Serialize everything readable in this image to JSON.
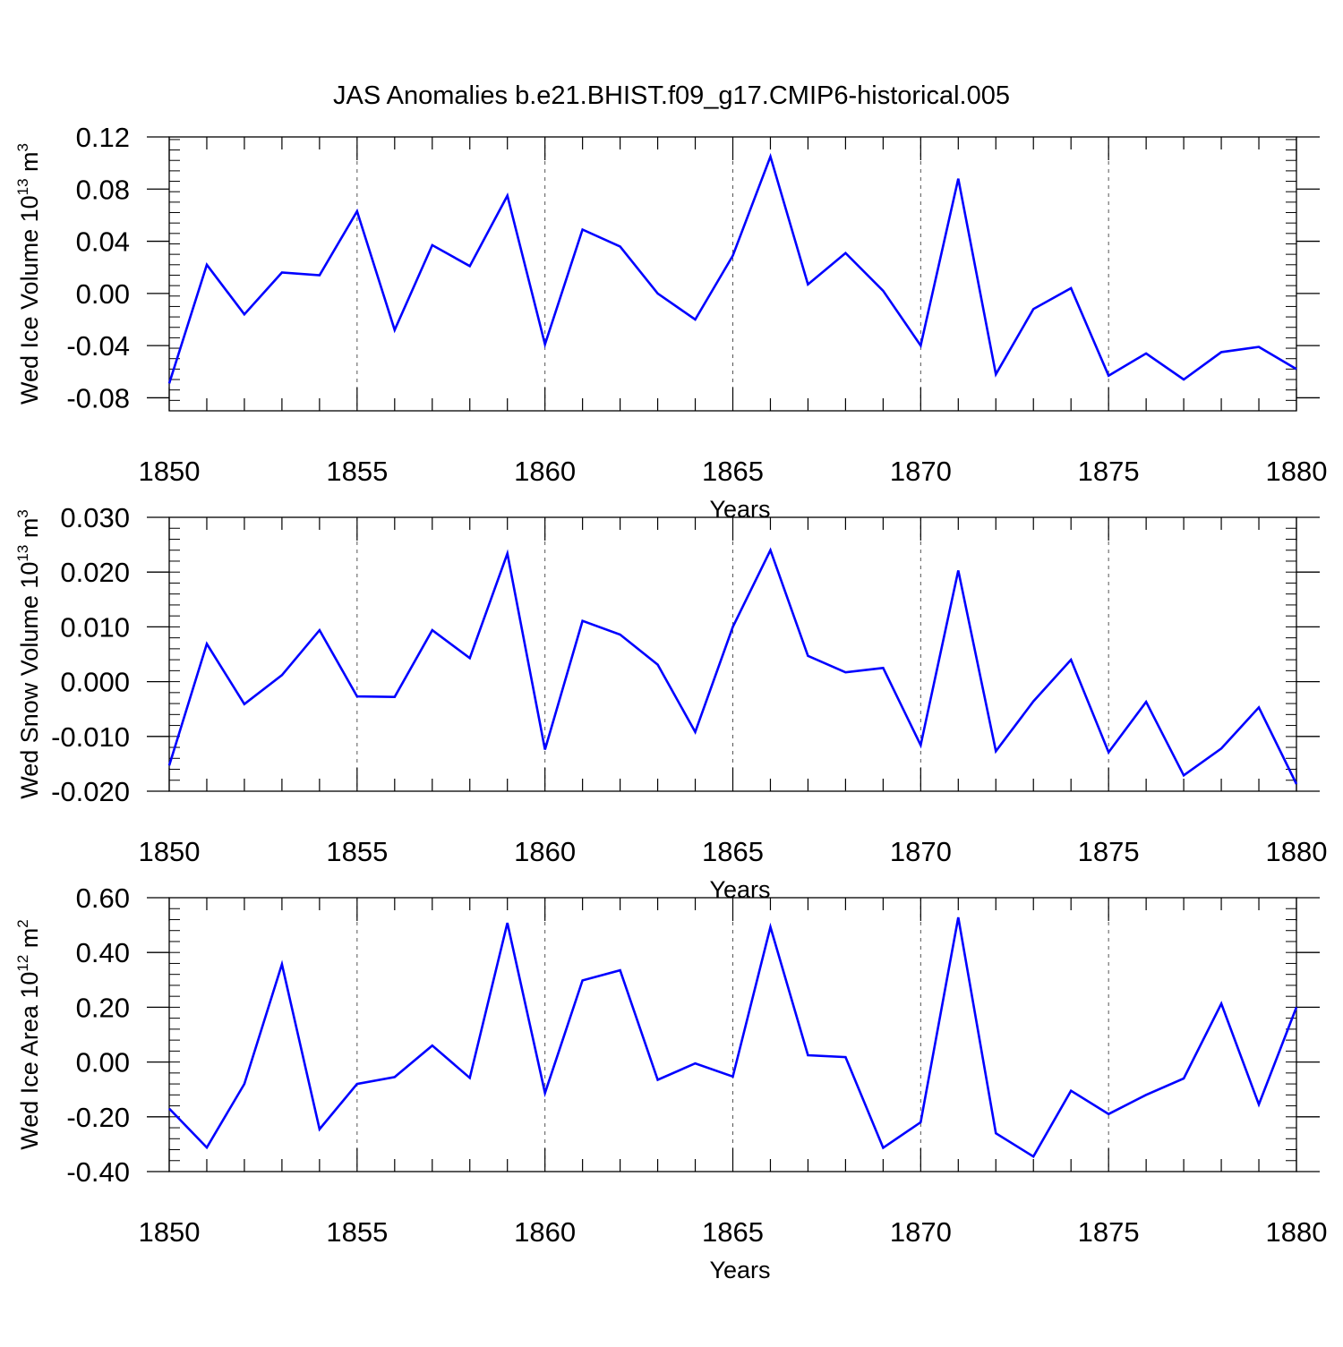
{
  "figure": {
    "title": "JAS Anomalies b.e21.BHIST.f09_g17.CMIP6-historical.005",
    "line_color": "#0000ff"
  },
  "chart_data": [
    {
      "type": "line",
      "title": "",
      "xlabel": "Years",
      "ylabel_main": "Wed Ice Volume 10",
      "ylabel_exp": "13",
      "ylabel_unit": "m",
      "ylabel_unit_exp": "3",
      "xlim": [
        1850,
        1880
      ],
      "ylim": [
        -0.09,
        0.12
      ],
      "grid": "vertical dashed at major x ticks",
      "x_ticks": [
        1850,
        1855,
        1860,
        1865,
        1870,
        1875,
        1880
      ],
      "x_tick_labels": [
        "1850",
        "1855",
        "1860",
        "1865",
        "1870",
        "1875",
        "1880"
      ],
      "y_ticks": [
        -0.08,
        -0.04,
        0.0,
        0.04,
        0.08,
        0.12
      ],
      "y_tick_labels": [
        "-0.08",
        "-0.04",
        "0.00",
        "0.04",
        "0.08",
        "0.12"
      ],
      "x": [
        1850,
        1851,
        1852,
        1853,
        1854,
        1855,
        1856,
        1857,
        1858,
        1859,
        1860,
        1861,
        1862,
        1863,
        1864,
        1865,
        1866,
        1867,
        1868,
        1869,
        1870,
        1871,
        1872,
        1873,
        1874,
        1875,
        1876,
        1877,
        1878,
        1879,
        1880
      ],
      "series": [
        {
          "values": [
            -0.069,
            0.022,
            -0.016,
            0.016,
            0.014,
            0.063,
            -0.028,
            0.037,
            0.021,
            0.075,
            -0.039,
            0.049,
            0.036,
            0.0,
            -0.02,
            0.029,
            0.105,
            0.007,
            0.031,
            0.002,
            -0.04,
            0.088,
            -0.062,
            -0.012,
            0.004,
            -0.063,
            -0.046,
            -0.066,
            -0.045,
            -0.041,
            -0.058
          ]
        }
      ]
    },
    {
      "type": "line",
      "title": "",
      "xlabel": "Years",
      "ylabel_main": "Wed Snow Volume 10",
      "ylabel_exp": "13",
      "ylabel_unit": "m",
      "ylabel_unit_exp": "3",
      "xlim": [
        1850,
        1880
      ],
      "ylim": [
        -0.02,
        0.03
      ],
      "grid": "vertical dashed at major x ticks",
      "x_ticks": [
        1850,
        1855,
        1860,
        1865,
        1870,
        1875,
        1880
      ],
      "x_tick_labels": [
        "1850",
        "1855",
        "1860",
        "1865",
        "1870",
        "1875",
        "1880"
      ],
      "y_ticks": [
        -0.02,
        -0.01,
        0.0,
        0.01,
        0.02,
        0.03
      ],
      "y_tick_labels": [
        "-0.020",
        "-0.010",
        "0.000",
        "0.010",
        "0.020",
        "0.030"
      ],
      "x": [
        1850,
        1851,
        1852,
        1853,
        1854,
        1855,
        1856,
        1857,
        1858,
        1859,
        1860,
        1861,
        1862,
        1863,
        1864,
        1865,
        1866,
        1867,
        1868,
        1869,
        1870,
        1871,
        1872,
        1873,
        1874,
        1875,
        1876,
        1877,
        1878,
        1879,
        1880
      ],
      "series": [
        {
          "values": [
            -0.0153,
            0.0069,
            -0.0041,
            0.0012,
            0.0094,
            -0.0027,
            -0.0028,
            0.0094,
            0.0043,
            0.0234,
            -0.0124,
            0.0111,
            0.0086,
            0.0031,
            -0.0092,
            0.01,
            0.024,
            0.0047,
            0.0017,
            0.0025,
            -0.0116,
            0.0203,
            -0.0127,
            -0.0036,
            0.004,
            -0.0129,
            -0.0037,
            -0.0171,
            -0.0122,
            -0.0047,
            -0.0187
          ]
        }
      ]
    },
    {
      "type": "line",
      "title": "",
      "xlabel": "Years",
      "ylabel_main": "Wed Ice Area 10",
      "ylabel_exp": "12",
      "ylabel_unit": "m",
      "ylabel_unit_exp": "2",
      "xlim": [
        1850,
        1880
      ],
      "ylim": [
        -0.4,
        0.6
      ],
      "grid": "vertical dashed at major x ticks",
      "x_ticks": [
        1850,
        1855,
        1860,
        1865,
        1870,
        1875,
        1880
      ],
      "x_tick_labels": [
        "1850",
        "1855",
        "1860",
        "1865",
        "1870",
        "1875",
        "1880"
      ],
      "y_ticks": [
        -0.4,
        -0.2,
        0.0,
        0.2,
        0.4,
        0.6
      ],
      "y_tick_labels": [
        "-0.40",
        "-0.20",
        "0.00",
        "0.20",
        "0.40",
        "0.60"
      ],
      "x": [
        1850,
        1851,
        1852,
        1853,
        1854,
        1855,
        1856,
        1857,
        1858,
        1859,
        1860,
        1861,
        1862,
        1863,
        1864,
        1865,
        1866,
        1867,
        1868,
        1869,
        1870,
        1871,
        1872,
        1873,
        1874,
        1875,
        1876,
        1877,
        1878,
        1879,
        1880
      ],
      "series": [
        {
          "values": [
            -0.17,
            -0.312,
            -0.08,
            0.357,
            -0.245,
            -0.08,
            -0.055,
            0.06,
            -0.058,
            0.508,
            -0.113,
            0.298,
            0.335,
            -0.065,
            -0.005,
            -0.053,
            0.493,
            0.025,
            0.018,
            -0.313,
            -0.22,
            0.528,
            -0.26,
            -0.345,
            -0.105,
            -0.19,
            -0.12,
            -0.06,
            0.213,
            -0.155,
            0.2
          ]
        }
      ]
    }
  ]
}
